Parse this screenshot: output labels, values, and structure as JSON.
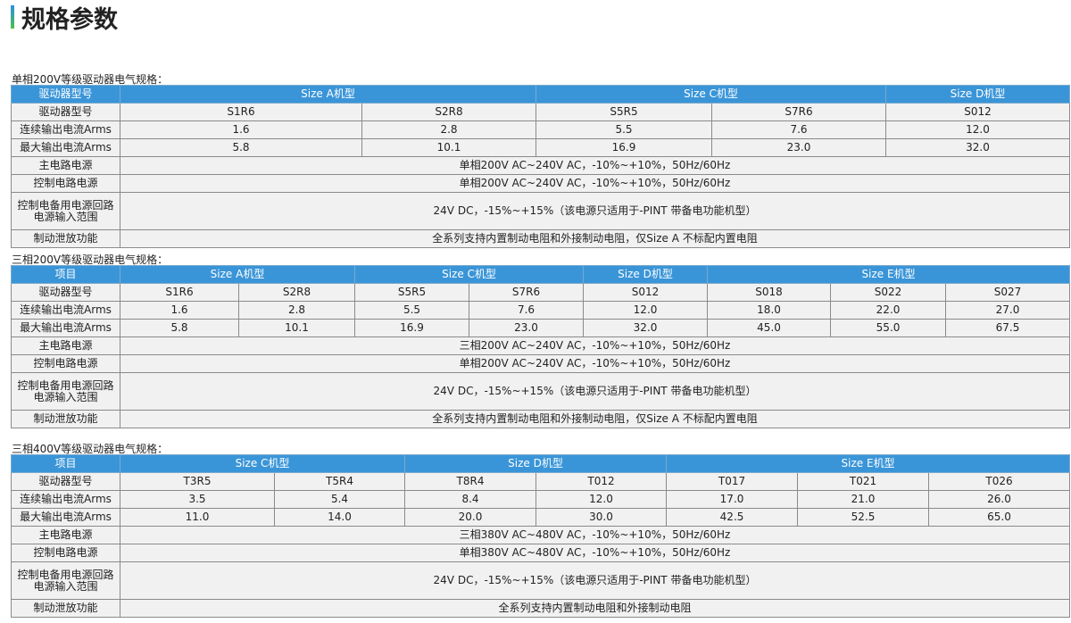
{
  "page_title": "规格参数",
  "colors": {
    "header": "#3a95d8",
    "cell": "#f1f1f1",
    "accent_bar": "#2b8fe0"
  },
  "tables": [
    {
      "title": "单相200V等级驱动器电气规格：",
      "header": [
        {
          "text": "驱动器型号",
          "span": 1
        },
        {
          "text": "Size A机型",
          "span": 2
        },
        {
          "text": "Size C机型",
          "span": 2
        },
        {
          "text": "Size D机型",
          "span": 1
        }
      ],
      "rows": [
        {
          "label": "驱动器型号",
          "cells": [
            "S1R6",
            "S2R8",
            "S5R5",
            "S7R6",
            "S012"
          ]
        },
        {
          "label": "连续输出电流Arms",
          "cells": [
            "1.6",
            "2.8",
            "5.5",
            "7.6",
            "12.0"
          ]
        },
        {
          "label": "最大输出电流Arms",
          "cells": [
            "5.8",
            "10.1",
            "16.9",
            "23.0",
            "32.0"
          ]
        },
        {
          "label": "主电路电源",
          "span": "单相200V AC~240V AC，-10%~+10%，50Hz/60Hz"
        },
        {
          "label": "控制电路电源",
          "span": "单相200V AC~240V AC，-10%~+10%，50Hz/60Hz"
        },
        {
          "label": "控制电备用电源回路\n电源输入范围",
          "span": "24V DC，-15%~+15%（该电源只适用于-PINT 带备电功能机型）",
          "tall": true
        },
        {
          "label": "制动泄放功能",
          "span": "全系列支持内置制动电阻和外接制动电阻，仅Size A 不标配内置电阻"
        }
      ]
    },
    {
      "title": "三相200V等级驱动器电气规格：",
      "header": [
        {
          "text": "项目",
          "span": 1
        },
        {
          "text": "Size A机型",
          "span": 2
        },
        {
          "text": "Size C机型",
          "span": 2
        },
        {
          "text": "Size D机型",
          "span": 1
        },
        {
          "text": "Size E机型",
          "span": 3
        }
      ],
      "rows": [
        {
          "label": "驱动器型号",
          "cells": [
            "S1R6",
            "S2R8",
            "S5R5",
            "S7R6",
            "S012",
            "S018",
            "S022",
            "S027"
          ]
        },
        {
          "label": "连续输出电流Arms",
          "cells": [
            "1.6",
            "2.8",
            "5.5",
            "7.6",
            "12.0",
            "18.0",
            "22.0",
            "27.0"
          ]
        },
        {
          "label": "最大输出电流Arms",
          "cells": [
            "5.8",
            "10.1",
            "16.9",
            "23.0",
            "32.0",
            "45.0",
            "55.0",
            "67.5"
          ]
        },
        {
          "label": "主电路电源",
          "span": "三相200V AC~240V AC，-10%~+10%，50Hz/60Hz"
        },
        {
          "label": "控制电路电源",
          "span": "单相200V AC~240V AC，-10%~+10%，50Hz/60Hz"
        },
        {
          "label": "控制电备用电源回路\n电源输入范围",
          "span": "24V DC，-15%~+15%（该电源只适用于-PINT 带备电功能机型）",
          "tall": true
        },
        {
          "label": "制动泄放功能",
          "span": "全系列支持内置制动电阻和外接制动电阻，仅Size A 不标配内置电阻"
        }
      ]
    },
    {
      "title": "三相400V等级驱动器电气规格：",
      "header": [
        {
          "text": "项目",
          "span": 1
        },
        {
          "text": "Size C机型",
          "span": 2
        },
        {
          "text": "Size D机型",
          "span": 2
        },
        {
          "text": "Size E机型",
          "span": 3
        }
      ],
      "rows": [
        {
          "label": "驱动器型号",
          "cells": [
            "T3R5",
            "T5R4",
            "T8R4",
            "T012",
            "T017",
            "T021",
            "T026"
          ]
        },
        {
          "label": "连续输出电流Arms",
          "cells": [
            "3.5",
            "5.4",
            "8.4",
            "12.0",
            "17.0",
            "21.0",
            "26.0"
          ]
        },
        {
          "label": "最大输出电流Arms",
          "cells": [
            "11.0",
            "14.0",
            "20.0",
            "30.0",
            "42.5",
            "52.5",
            "65.0"
          ]
        },
        {
          "label": "主电路电源",
          "span": "三相380V AC~480V AC，-10%~+10%，50Hz/60Hz"
        },
        {
          "label": "控制电路电源",
          "span": "单相380V AC~480V AC，-10%~+10%，50Hz/60Hz"
        },
        {
          "label": "控制电备用电源回路\n电源输入范围",
          "span": "24V DC，-15%~+15%（该电源只适用于-PINT 带备电功能机型）",
          "tall": true
        },
        {
          "label": "制动泄放功能",
          "span": "全系列支持内置制动电阻和外接制动电阻"
        }
      ]
    }
  ]
}
